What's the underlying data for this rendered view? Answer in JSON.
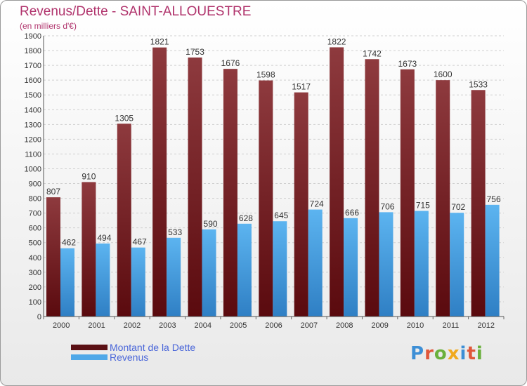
{
  "chart_data": {
    "type": "bar",
    "title": "Revenus/Dette - SAINT-ALLOUESTRE",
    "subtitle": "(en milliers d'€)",
    "categories": [
      "2000",
      "2001",
      "2002",
      "2003",
      "2004",
      "2005",
      "2006",
      "2007",
      "2008",
      "2009",
      "2010",
      "2011",
      "2012"
    ],
    "series": [
      {
        "name": "Montant de la Dette",
        "values": [
          807,
          910,
          1305,
          1821,
          1753,
          1676,
          1598,
          1517,
          1822,
          1742,
          1673,
          1600,
          1533
        ],
        "color": "#7a1f24"
      },
      {
        "name": "Revenus",
        "values": [
          462,
          494,
          467,
          533,
          590,
          628,
          645,
          724,
          666,
          706,
          715,
          702,
          756
        ],
        "color": "#4fa8e8"
      }
    ],
    "ylim": [
      0,
      1900
    ],
    "yticks": [
      0,
      100,
      200,
      300,
      400,
      500,
      600,
      700,
      800,
      900,
      1000,
      1100,
      1200,
      1300,
      1400,
      1500,
      1600,
      1700,
      1800,
      1900
    ],
    "grid": true,
    "legend_position": "bottom-left"
  },
  "branding": {
    "logo_letters": [
      "P",
      "r",
      "o",
      "x",
      "i",
      "t",
      "i"
    ],
    "logo_colors": [
      "#3d8fd6",
      "#e0573a",
      "#6ab03c",
      "#f0a91e",
      "#3d8fd6",
      "#e0573a",
      "#6ab03c"
    ]
  }
}
